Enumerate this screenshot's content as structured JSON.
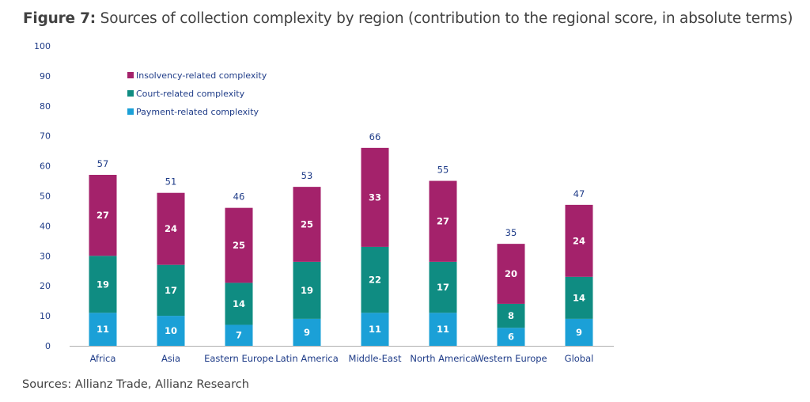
{
  "header": {
    "figure_label": "Figure 7:",
    "title_text": " Sources of collection complexity by region (contribution to the regional score, in absolute terms)"
  },
  "footer": {
    "source": "Sources: Allianz Trade, Allianz Research"
  },
  "chart_data": {
    "type": "bar",
    "stacked": true,
    "title": "Figure 7: Sources of collection complexity by region (contribution to the regional score, in absolute terms)",
    "xlabel": "",
    "ylabel": "",
    "ylim": [
      0,
      100
    ],
    "yticks": [
      0,
      10,
      20,
      30,
      40,
      50,
      60,
      70,
      80,
      90,
      100
    ],
    "grid": false,
    "legend_position": "top-left",
    "categories": [
      "Africa",
      "Asia",
      "Eastern Europe",
      "Latin America",
      "Middle-East",
      "North America",
      "Western Europe",
      "Global"
    ],
    "series": [
      {
        "name": "Payment-related complexity",
        "color": "#1ba0d7",
        "values": [
          11,
          10,
          7,
          9,
          11,
          11,
          6,
          9
        ]
      },
      {
        "name": "Court-related complexity",
        "color": "#0f8c82",
        "values": [
          19,
          17,
          14,
          19,
          22,
          17,
          8,
          14
        ]
      },
      {
        "name": "Insolvency-related complexity",
        "color": "#a4226b",
        "values": [
          27,
          24,
          25,
          25,
          33,
          27,
          20,
          24
        ]
      }
    ],
    "totals": [
      57,
      51,
      46,
      53,
      66,
      55,
      35,
      47
    ],
    "legend_order": [
      "Insolvency-related complexity",
      "Court-related complexity",
      "Payment-related complexity"
    ]
  }
}
